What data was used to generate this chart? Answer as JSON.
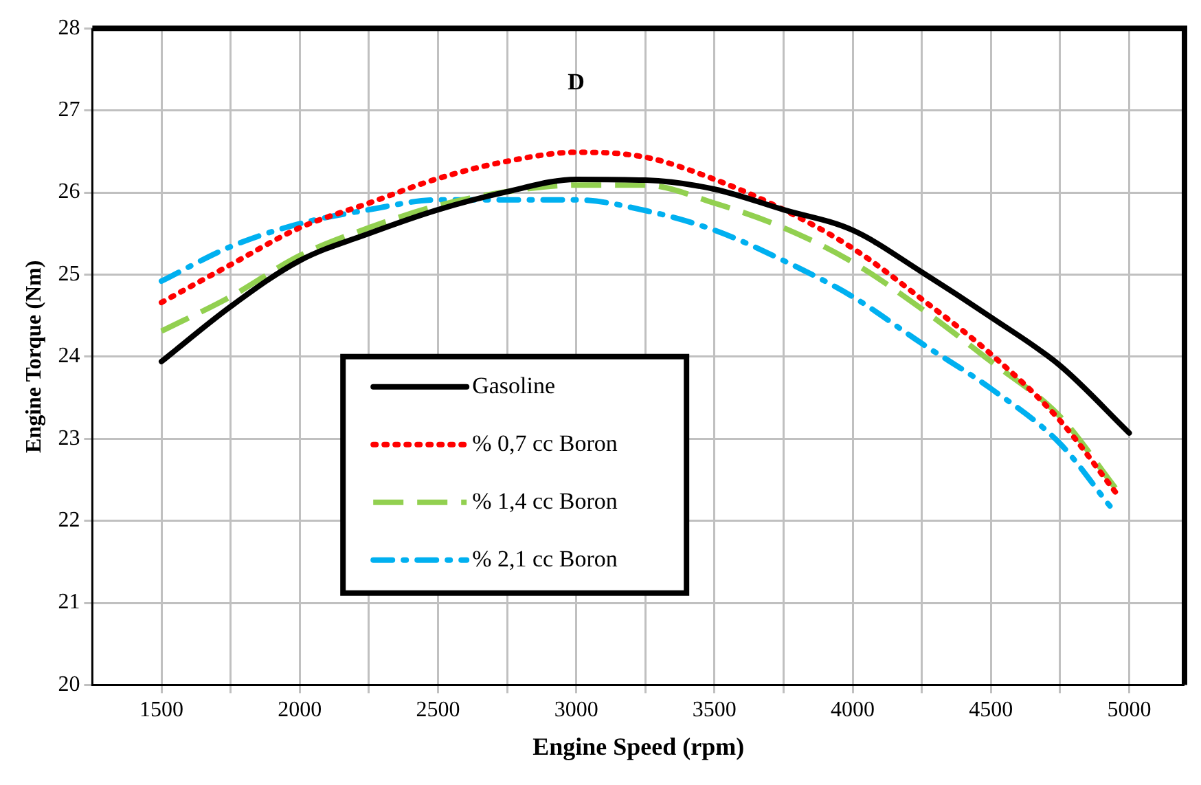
{
  "chart_data": {
    "type": "line",
    "title": "D",
    "xlabel": "Engine Speed (rpm)",
    "ylabel": "Engine Torque (Nm)",
    "xlim": [
      1250,
      5200
    ],
    "xticks": [
      1500,
      {
        "value": 1750,
        "label": null
      },
      2000,
      {
        "value": 2250,
        "label": null
      },
      2500,
      {
        "value": 2750,
        "label": null
      },
      3000,
      {
        "value": 3250,
        "label": null
      },
      3500,
      {
        "value": 3750,
        "label": null
      },
      4000,
      {
        "value": 4250,
        "label": null
      },
      4500,
      {
        "value": 4750,
        "label": null
      },
      5000
    ],
    "ylim": [
      20,
      28
    ],
    "yticks": [
      20,
      21,
      22,
      23,
      24,
      25,
      26,
      27,
      28
    ],
    "grid": true,
    "legend": "bottom",
    "marker": "none",
    "series": [
      {
        "name": "Gasoline",
        "color": "#000000",
        "line_style": "solid",
        "x": [
          1500,
          1750,
          2000,
          2250,
          2500,
          2750,
          3000,
          3250,
          3500,
          3750,
          4000,
          4250,
          4500,
          4750,
          5000
        ],
        "values": [
          23.94,
          24.61,
          25.17,
          25.5,
          25.79,
          26.01,
          26.16,
          26.15,
          26.04,
          25.79,
          25.54,
          25.03,
          24.48,
          23.89,
          23.07
        ]
      },
      {
        "name": "% 0,7 cc Boron",
        "color": "#ff0000",
        "line_style": "dotted",
        "x": [
          1500,
          1750,
          2000,
          2250,
          2500,
          2750,
          3000,
          3250,
          3500,
          3750,
          4000,
          4250,
          4500,
          4750,
          4950
        ],
        "values": [
          24.66,
          25.12,
          25.57,
          25.87,
          26.17,
          26.38,
          26.49,
          26.43,
          26.16,
          25.79,
          25.32,
          24.7,
          24.03,
          23.22,
          22.35
        ]
      },
      {
        "name": "% 1,4 cc Boron",
        "color": "#92d050",
        "line_style": "dashed",
        "x": [
          1500,
          1750,
          2000,
          2250,
          2500,
          2750,
          3000,
          3250,
          3500,
          3750,
          4000,
          4250,
          4500,
          4750,
          4950
        ],
        "values": [
          24.31,
          24.73,
          25.23,
          25.57,
          25.84,
          26.01,
          26.09,
          26.09,
          25.87,
          25.57,
          25.15,
          24.58,
          23.94,
          23.27,
          22.4
        ]
      },
      {
        "name": "% 2,1 cc Boron",
        "color": "#00b0f0",
        "line_style": "dashdot",
        "x": [
          1500,
          1750,
          2000,
          2250,
          2500,
          2750,
          3000,
          3250,
          3500,
          3750,
          4000,
          4250,
          4500,
          4750,
          4930
        ],
        "values": [
          24.92,
          25.34,
          25.62,
          25.79,
          25.91,
          25.91,
          25.91,
          25.78,
          25.54,
          25.17,
          24.73,
          24.16,
          23.61,
          22.94,
          22.18
        ]
      }
    ]
  }
}
